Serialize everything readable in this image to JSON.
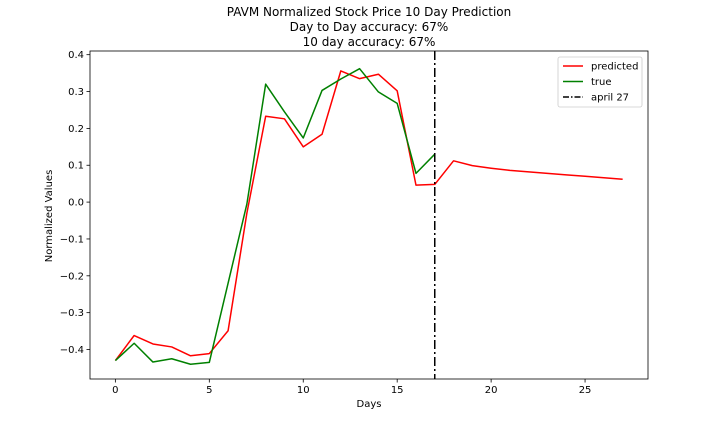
{
  "chart_data": {
    "type": "line",
    "title": [
      "PAVM Normalized Stock Price 10 Day Prediction",
      "Day to Day accuracy: 67%",
      "10 day accuracy: 67%"
    ],
    "xlabel": "Days",
    "ylabel": "Normalized Values",
    "xlim": [
      -1.35,
      28.35
    ],
    "ylim": [
      -0.48,
      0.41
    ],
    "x_ticks": [
      0,
      5,
      10,
      15,
      20,
      25
    ],
    "y_ticks": [
      -0.4,
      -0.3,
      -0.2,
      -0.1,
      0.0,
      0.1,
      0.2,
      0.3,
      0.4
    ],
    "x_tick_labels": [
      "0",
      "5",
      "10",
      "15",
      "20",
      "25"
    ],
    "y_tick_labels": [
      "−0.4",
      "−0.3",
      "−0.2",
      "−0.1",
      "0.0",
      "0.1",
      "0.2",
      "0.3",
      "0.4"
    ],
    "grid": false,
    "legend_position": "top-right",
    "series": [
      {
        "name": "predicted",
        "color": "#ff0000",
        "x": [
          0,
          1,
          2,
          3,
          4,
          5,
          6,
          7,
          8,
          9,
          10,
          11,
          12,
          13,
          14,
          15,
          16,
          17,
          18,
          19,
          20,
          21,
          22,
          23,
          24,
          25,
          26,
          27
        ],
        "values": [
          -0.43,
          -0.362,
          -0.385,
          -0.393,
          -0.417,
          -0.411,
          -0.349,
          -0.03,
          0.233,
          0.226,
          0.15,
          0.184,
          0.356,
          0.335,
          0.347,
          0.302,
          0.046,
          0.048,
          0.112,
          0.099,
          0.092,
          0.086,
          0.082,
          0.078,
          0.074,
          0.07,
          0.066,
          0.062
        ]
      },
      {
        "name": "true",
        "color": "#008000",
        "x": [
          0,
          1,
          2,
          3,
          4,
          5,
          6,
          7,
          8,
          9,
          10,
          11,
          12,
          13,
          14,
          15,
          16,
          17
        ],
        "values": [
          -0.43,
          -0.383,
          -0.434,
          -0.425,
          -0.44,
          -0.435,
          -0.22,
          -0.005,
          0.32,
          0.245,
          0.174,
          0.303,
          0.334,
          0.362,
          0.299,
          0.268,
          0.078,
          0.13
        ]
      }
    ],
    "vline": {
      "x": 17,
      "label": "april 27",
      "color": "#000000",
      "style": "dashdot"
    }
  }
}
